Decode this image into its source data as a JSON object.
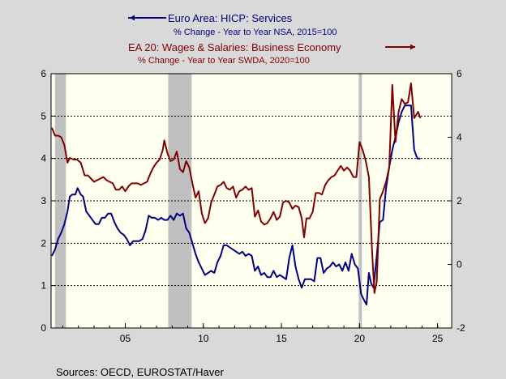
{
  "legend": {
    "s1_title": "Euro Area: HICP: Services",
    "s1_sub": "% Change - Year to Year    NSA, 2015=100",
    "s1_color": "#000080",
    "s2_title": "EA 20: Wages & Salaries: Business Economy",
    "s2_sub": "% Change - Year to Year   SWDA, 2020=100",
    "s2_color": "#800000"
  },
  "source": "Sources:  OECD, EUROSTAT/Haver",
  "chart_data": {
    "type": "line",
    "plot_background": "#fffff0",
    "recession_color": "#c0c0c0",
    "x_ticks": [
      {
        "value": 2005,
        "label": "05"
      },
      {
        "value": 2010,
        "label": "10"
      },
      {
        "value": 2015,
        "label": "15"
      },
      {
        "value": 2020,
        "label": "20"
      },
      {
        "value": 2025,
        "label": "25"
      }
    ],
    "xlim": [
      2000.25,
      2025.9
    ],
    "left_axis": {
      "ylim": [
        0,
        6
      ],
      "ticks": [
        0,
        1,
        2,
        3,
        4,
        5,
        6
      ]
    },
    "right_axis": {
      "ylim": [
        -2,
        6
      ],
      "ticks": [
        -2,
        0,
        2,
        4,
        6
      ]
    },
    "gridlines_y_left": [
      1,
      2,
      3,
      4,
      5
    ],
    "shaded_periods": [
      [
        2000.5,
        2001.2
      ],
      [
        2007.75,
        2009.25
      ],
      [
        2019.95,
        2020.15
      ]
    ],
    "series": [
      {
        "name": "Euro Area: HICP: Services",
        "axis": "left",
        "color": "#000080",
        "points": [
          [
            2000.3,
            1.7
          ],
          [
            2000.5,
            1.85
          ],
          [
            2000.7,
            2.1
          ],
          [
            2000.9,
            2.25
          ],
          [
            2001.1,
            2.45
          ],
          [
            2001.3,
            2.75
          ],
          [
            2001.45,
            3.1
          ],
          [
            2001.6,
            3.15
          ],
          [
            2001.8,
            3.15
          ],
          [
            2001.95,
            3.3
          ],
          [
            2002.15,
            3.15
          ],
          [
            2002.3,
            3.1
          ],
          [
            2002.5,
            2.75
          ],
          [
            2002.7,
            2.65
          ],
          [
            2002.9,
            2.55
          ],
          [
            2003.1,
            2.45
          ],
          [
            2003.3,
            2.45
          ],
          [
            2003.5,
            2.6
          ],
          [
            2003.7,
            2.6
          ],
          [
            2003.9,
            2.7
          ],
          [
            2004.1,
            2.7
          ],
          [
            2004.3,
            2.5
          ],
          [
            2004.5,
            2.35
          ],
          [
            2004.7,
            2.25
          ],
          [
            2004.9,
            2.2
          ],
          [
            2005.1,
            2.1
          ],
          [
            2005.3,
            1.95
          ],
          [
            2005.5,
            2.05
          ],
          [
            2005.7,
            2.05
          ],
          [
            2005.9,
            2.05
          ],
          [
            2006.1,
            2.1
          ],
          [
            2006.3,
            2.3
          ],
          [
            2006.5,
            2.65
          ],
          [
            2006.7,
            2.6
          ],
          [
            2006.9,
            2.6
          ],
          [
            2007.1,
            2.55
          ],
          [
            2007.3,
            2.6
          ],
          [
            2007.5,
            2.55
          ],
          [
            2007.7,
            2.55
          ],
          [
            2007.9,
            2.65
          ],
          [
            2008.1,
            2.55
          ],
          [
            2008.3,
            2.7
          ],
          [
            2008.5,
            2.65
          ],
          [
            2008.7,
            2.7
          ],
          [
            2008.9,
            2.35
          ],
          [
            2009.1,
            2.25
          ],
          [
            2009.3,
            2.0
          ],
          [
            2009.5,
            1.75
          ],
          [
            2009.7,
            1.55
          ],
          [
            2009.9,
            1.4
          ],
          [
            2010.1,
            1.25
          ],
          [
            2010.3,
            1.3
          ],
          [
            2010.5,
            1.35
          ],
          [
            2010.7,
            1.3
          ],
          [
            2010.9,
            1.55
          ],
          [
            2011.1,
            1.7
          ],
          [
            2011.3,
            1.95
          ],
          [
            2011.5,
            1.95
          ],
          [
            2011.7,
            1.9
          ],
          [
            2011.9,
            1.85
          ],
          [
            2012.1,
            1.8
          ],
          [
            2012.3,
            1.75
          ],
          [
            2012.5,
            1.8
          ],
          [
            2012.7,
            1.7
          ],
          [
            2012.9,
            1.75
          ],
          [
            2013.1,
            1.7
          ],
          [
            2013.3,
            1.35
          ],
          [
            2013.5,
            1.45
          ],
          [
            2013.7,
            1.25
          ],
          [
            2013.9,
            1.3
          ],
          [
            2014.1,
            1.2
          ],
          [
            2014.3,
            1.2
          ],
          [
            2014.5,
            1.35
          ],
          [
            2014.7,
            1.2
          ],
          [
            2014.9,
            1.25
          ],
          [
            2015.1,
            1.2
          ],
          [
            2015.3,
            1.15
          ],
          [
            2015.5,
            1.65
          ],
          [
            2015.7,
            1.95
          ],
          [
            2015.9,
            1.45
          ],
          [
            2016.1,
            1.15
          ],
          [
            2016.3,
            0.95
          ],
          [
            2016.5,
            1.15
          ],
          [
            2016.7,
            1.15
          ],
          [
            2016.9,
            1.15
          ],
          [
            2017.1,
            1.1
          ],
          [
            2017.3,
            1.65
          ],
          [
            2017.5,
            1.65
          ],
          [
            2017.7,
            1.3
          ],
          [
            2017.9,
            1.4
          ],
          [
            2018.1,
            1.45
          ],
          [
            2018.3,
            1.55
          ],
          [
            2018.5,
            1.45
          ],
          [
            2018.7,
            1.5
          ],
          [
            2018.9,
            1.35
          ],
          [
            2019.1,
            1.55
          ],
          [
            2019.3,
            1.35
          ],
          [
            2019.5,
            1.75
          ],
          [
            2019.7,
            1.5
          ],
          [
            2019.9,
            1.4
          ],
          [
            2020.1,
            0.8
          ],
          [
            2020.3,
            0.65
          ],
          [
            2020.45,
            0.55
          ],
          [
            2020.6,
            1.3
          ],
          [
            2020.75,
            1.05
          ],
          [
            2020.9,
            0.95
          ],
          [
            2021.1,
            1.7
          ],
          [
            2021.3,
            2.5
          ],
          [
            2021.5,
            2.55
          ],
          [
            2021.7,
            3.3
          ],
          [
            2021.9,
            3.8
          ],
          [
            2022.1,
            4.2
          ],
          [
            2022.3,
            4.5
          ],
          [
            2022.5,
            4.85
          ],
          [
            2022.7,
            5.1
          ],
          [
            2022.9,
            5.25
          ],
          [
            2023.1,
            5.25
          ],
          [
            2023.3,
            5.25
          ],
          [
            2023.5,
            4.2
          ],
          [
            2023.7,
            4.0
          ],
          [
            2023.9,
            4.0
          ]
        ]
      },
      {
        "name": "EA 20: Wages & Salaries: Business Economy",
        "axis": "right",
        "color": "#800000",
        "points": [
          [
            2000.3,
            4.3
          ],
          [
            2000.5,
            4.05
          ],
          [
            2000.7,
            4.05
          ],
          [
            2000.9,
            4.0
          ],
          [
            2001.1,
            3.75
          ],
          [
            2001.3,
            3.2
          ],
          [
            2001.45,
            3.35
          ],
          [
            2001.7,
            3.3
          ],
          [
            2001.9,
            3.3
          ],
          [
            2002.15,
            3.2
          ],
          [
            2002.4,
            2.8
          ],
          [
            2002.6,
            2.8
          ],
          [
            2002.8,
            2.7
          ],
          [
            2003.0,
            2.6
          ],
          [
            2003.2,
            2.65
          ],
          [
            2003.4,
            2.7
          ],
          [
            2003.6,
            2.75
          ],
          [
            2003.8,
            2.65
          ],
          [
            2004.0,
            2.6
          ],
          [
            2004.2,
            2.55
          ],
          [
            2004.4,
            2.35
          ],
          [
            2004.6,
            2.35
          ],
          [
            2004.8,
            2.45
          ],
          [
            2005.0,
            2.3
          ],
          [
            2005.2,
            2.45
          ],
          [
            2005.4,
            2.55
          ],
          [
            2005.6,
            2.55
          ],
          [
            2005.8,
            2.55
          ],
          [
            2006.0,
            2.5
          ],
          [
            2006.2,
            2.55
          ],
          [
            2006.4,
            2.6
          ],
          [
            2006.6,
            2.85
          ],
          [
            2006.8,
            3.05
          ],
          [
            2007.0,
            3.2
          ],
          [
            2007.2,
            3.3
          ],
          [
            2007.4,
            3.6
          ],
          [
            2007.5,
            3.9
          ],
          [
            2007.7,
            3.5
          ],
          [
            2007.9,
            3.25
          ],
          [
            2008.1,
            3.3
          ],
          [
            2008.3,
            3.55
          ],
          [
            2008.5,
            3.0
          ],
          [
            2008.7,
            2.9
          ],
          [
            2008.9,
            3.25
          ],
          [
            2009.1,
            3.05
          ],
          [
            2009.3,
            2.55
          ],
          [
            2009.5,
            2.1
          ],
          [
            2009.7,
            2.3
          ],
          [
            2009.9,
            1.6
          ],
          [
            2010.1,
            1.3
          ],
          [
            2010.3,
            1.45
          ],
          [
            2010.5,
            1.95
          ],
          [
            2010.7,
            2.2
          ],
          [
            2010.9,
            2.45
          ],
          [
            2011.1,
            2.5
          ],
          [
            2011.3,
            2.6
          ],
          [
            2011.5,
            2.4
          ],
          [
            2011.7,
            2.35
          ],
          [
            2011.9,
            2.45
          ],
          [
            2012.1,
            2.1
          ],
          [
            2012.3,
            2.3
          ],
          [
            2012.5,
            2.35
          ],
          [
            2012.7,
            2.45
          ],
          [
            2012.9,
            2.35
          ],
          [
            2013.1,
            2.4
          ],
          [
            2013.3,
            1.5
          ],
          [
            2013.5,
            1.7
          ],
          [
            2013.7,
            1.35
          ],
          [
            2013.9,
            1.25
          ],
          [
            2014.1,
            1.3
          ],
          [
            2014.3,
            1.45
          ],
          [
            2014.5,
            1.65
          ],
          [
            2014.7,
            1.4
          ],
          [
            2014.9,
            1.5
          ],
          [
            2015.1,
            1.95
          ],
          [
            2015.3,
            2.0
          ],
          [
            2015.5,
            1.95
          ],
          [
            2015.7,
            1.75
          ],
          [
            2015.9,
            1.85
          ],
          [
            2016.1,
            1.8
          ],
          [
            2016.3,
            1.45
          ],
          [
            2016.45,
            0.85
          ],
          [
            2016.6,
            1.45
          ],
          [
            2016.8,
            1.45
          ],
          [
            2017.0,
            1.65
          ],
          [
            2017.2,
            2.25
          ],
          [
            2017.4,
            2.25
          ],
          [
            2017.6,
            2.2
          ],
          [
            2017.8,
            2.5
          ],
          [
            2018.0,
            2.65
          ],
          [
            2018.2,
            2.75
          ],
          [
            2018.4,
            2.8
          ],
          [
            2018.6,
            2.95
          ],
          [
            2018.8,
            3.1
          ],
          [
            2019.0,
            2.95
          ],
          [
            2019.2,
            3.05
          ],
          [
            2019.4,
            2.95
          ],
          [
            2019.6,
            2.75
          ],
          [
            2019.8,
            2.75
          ],
          [
            2020.0,
            3.85
          ],
          [
            2020.2,
            3.6
          ],
          [
            2020.4,
            3.25
          ],
          [
            2020.6,
            2.75
          ],
          [
            2020.8,
            0.45
          ],
          [
            2020.95,
            -0.9
          ],
          [
            2021.1,
            -0.55
          ],
          [
            2021.3,
            2.05
          ],
          [
            2021.5,
            2.3
          ],
          [
            2021.7,
            2.6
          ],
          [
            2021.9,
            3.05
          ],
          [
            2022.1,
            5.65
          ],
          [
            2022.3,
            3.85
          ],
          [
            2022.5,
            4.8
          ],
          [
            2022.7,
            5.2
          ],
          [
            2022.9,
            5.05
          ],
          [
            2023.1,
            5.1
          ],
          [
            2023.3,
            5.7
          ],
          [
            2023.5,
            4.6
          ],
          [
            2023.75,
            4.8
          ],
          [
            2023.9,
            4.6
          ]
        ]
      }
    ]
  }
}
